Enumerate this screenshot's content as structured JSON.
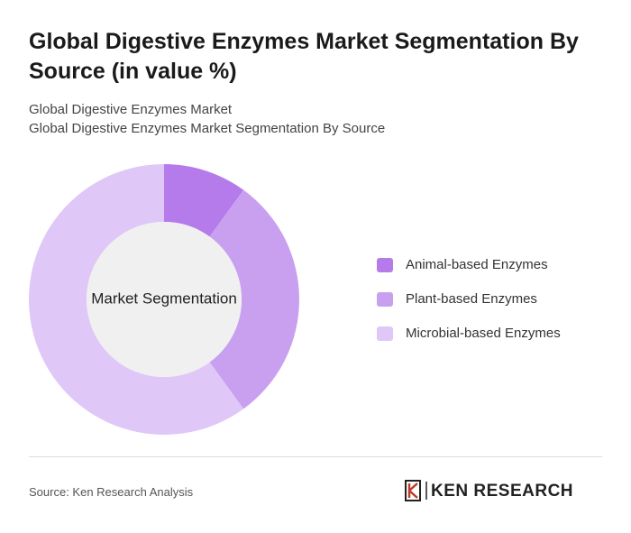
{
  "chart_data": {
    "type": "donut",
    "title": "Global Digestive Enzymes Market Segmentation By Source (in value %)",
    "subtitle": [
      "Global Digestive Enzymes Market",
      "Global Digestive Enzymes Market Segmentation By Source"
    ],
    "center_label": "Market Segmentation",
    "categories": [
      "Animal-based Enzymes",
      "Plant-based Enzymes",
      "Microbial-based Enzymes"
    ],
    "values": [
      10,
      30,
      60
    ],
    "colors": [
      "#b57bea",
      "#c9a0f0",
      "#dfc8f7"
    ],
    "source": "Source: Ken Research Analysis"
  },
  "logo": "KEN RESEARCH"
}
